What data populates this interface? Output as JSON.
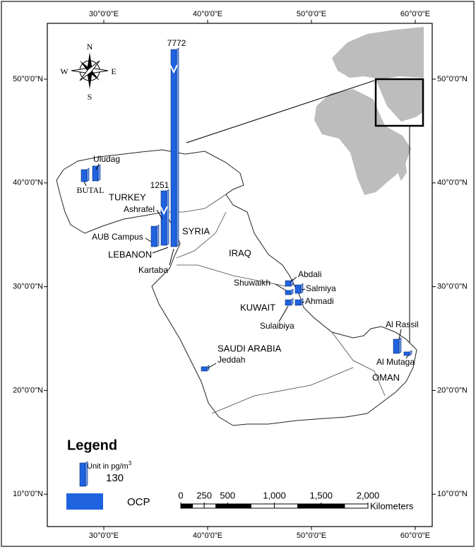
{
  "map": {
    "lon_ticks": [
      {
        "value": 30,
        "label": "30°0'0\"E"
      },
      {
        "value": 40,
        "label": "40°0'0\"E"
      },
      {
        "value": 50,
        "label": "50°0'0\"E"
      },
      {
        "value": 60,
        "label": "60°0'0\"E"
      }
    ],
    "lat_ticks": [
      {
        "value": 10,
        "label": "10°0'0\"N"
      },
      {
        "value": 20,
        "label": "20°0'0\"N"
      },
      {
        "value": 30,
        "label": "30°0'0\"N"
      },
      {
        "value": 40,
        "label": "40°0'0\"N"
      },
      {
        "value": 50,
        "label": "50°0'0\"N"
      }
    ],
    "compass": [
      "N",
      "E",
      "S",
      "W"
    ],
    "countries": [
      "TURKEY",
      "SYRIA",
      "LEBANON",
      "IRAQ",
      "KUWAIT",
      "SAUDI ARABIA",
      "OMAN"
    ],
    "color": "#1f63e0",
    "sites": [
      {
        "name": "Uludag",
        "value": 83
      },
      {
        "name": "BUTAL",
        "value": 67
      },
      {
        "name": "AUB Campus",
        "value": 114
      },
      {
        "name": "Ashrafel",
        "value": 1251,
        "broken": true
      },
      {
        "name": "Kartaba",
        "value": 7772,
        "broken": true
      },
      {
        "name": "Abdali",
        "value": 31
      },
      {
        "name": "Shuwaikh",
        "value": 24
      },
      {
        "name": "Salmiya",
        "value": 47
      },
      {
        "name": "Ahmadi",
        "value": 31
      },
      {
        "name": "Sulaibiya",
        "value": 31
      },
      {
        "name": "Jeddah",
        "value": 24
      },
      {
        "name": "Al Rassil",
        "value": 79
      },
      {
        "name": "Al Mutaga",
        "value": 20
      }
    ]
  },
  "legend": {
    "title": "Legend",
    "unit": "Unit in pg/m",
    "unit_sup": "3",
    "scale_value": 130,
    "series": "OCP"
  },
  "scale_bar": {
    "ticks": [
      0,
      250,
      500,
      {
        "value": 1000,
        "label": "1,000"
      },
      {
        "value": 1500,
        "label": "1,500"
      },
      {
        "value": 2000,
        "label": "2,000"
      }
    ],
    "unit": "Kilometers"
  }
}
